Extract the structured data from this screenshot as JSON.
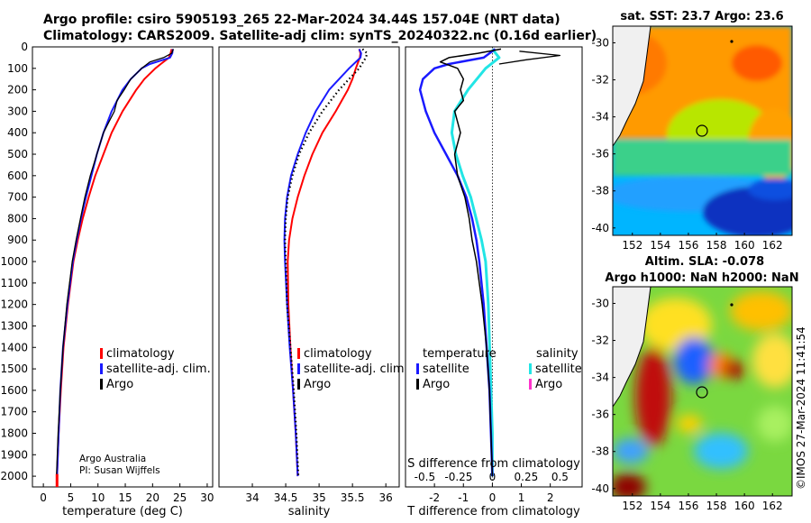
{
  "header": {
    "line1": "Argo profile: csiro 5905193_265 22-Mar-2024 34.44S 157.04E (NRT data)",
    "line2": "Climatology: CARS2009. Satellite-adj clim: synTS_20240322.nc (0.16d earlier)"
  },
  "colors": {
    "climatology": "#ff0000",
    "satellite": "#1a1aff",
    "argo": "#000000",
    "sat_sal": "#22e5e5",
    "argo_sal": "#ff33cc"
  },
  "chart_data": [
    {
      "type": "line",
      "xlabel": "temperature (deg C)",
      "ylabel": "",
      "xlim": [
        -2,
        31
      ],
      "ylim": [
        2050,
        0
      ],
      "xticks": [
        "0",
        "5",
        "10",
        "15",
        "20",
        "25",
        "30"
      ],
      "yticks": [
        "0",
        "100",
        "200",
        "300",
        "400",
        "500",
        "600",
        "700",
        "800",
        "900",
        "1000",
        "1100",
        "1200",
        "1300",
        "1400",
        "1500",
        "1600",
        "1700",
        "1800",
        "1900",
        "2000"
      ],
      "legend": [
        "climatology",
        "satellite-adj. clim.",
        "Argo"
      ],
      "annotation": [
        "Argo Australia",
        "PI: Susan Wijffels"
      ],
      "series": [
        {
          "name": "climatology",
          "depth": [
            10,
            30,
            50,
            80,
            100,
            150,
            200,
            300,
            400,
            500,
            600,
            700,
            800,
            900,
            1000,
            1200,
            1400,
            1600,
            1800,
            2000
          ],
          "values": [
            23.5,
            23.3,
            23,
            21.5,
            20.5,
            18.5,
            17,
            14.5,
            12.5,
            11,
            9.5,
            8.3,
            7.2,
            6.3,
            5.5,
            4.5,
            3.7,
            3.2,
            2.8,
            2.5
          ]
        },
        {
          "name": "satellite-adj. clim.",
          "depth": [
            10,
            30,
            50,
            80,
            100,
            150,
            200,
            300,
            400,
            500,
            600,
            700,
            800,
            900,
            1000,
            1200,
            1400,
            1600,
            1800,
            2000
          ],
          "values": [
            23.7,
            23.6,
            23.2,
            19.5,
            18,
            16,
            14.5,
            12.5,
            11,
            9.8,
            8.8,
            7.8,
            6.9,
            6.1,
            5.4,
            4.4,
            3.6,
            3.1,
            2.8,
            2.5
          ]
        },
        {
          "name": "Argo",
          "depth": [
            10,
            30,
            50,
            70,
            100,
            150,
            200,
            250,
            300,
            350,
            400,
            500,
            600,
            700,
            800,
            900,
            1000,
            1200,
            1400,
            1600,
            1800,
            2000
          ],
          "values": [
            23.8,
            23.5,
            22,
            19.5,
            18,
            16,
            14.8,
            13.5,
            13,
            12,
            11,
            9.8,
            8.6,
            7.6,
            6.8,
            6,
            5.3,
            4.3,
            3.6,
            3.1,
            2.7,
            2.4
          ]
        }
      ]
    },
    {
      "type": "line",
      "xlabel": "salinity",
      "xlim": [
        33.5,
        36.2
      ],
      "ylim": [
        2050,
        0
      ],
      "xticks": [
        "34",
        "34.5",
        "35",
        "35.5",
        "36"
      ],
      "legend": [
        "climatology",
        "satellite-adj. clim.",
        "Argo"
      ],
      "series": [
        {
          "name": "climatology",
          "depth": [
            10,
            30,
            50,
            100,
            150,
            200,
            300,
            400,
            500,
            600,
            700,
            800,
            900,
            1000,
            1200,
            1400,
            1600,
            1800,
            2000
          ],
          "values": [
            35.6,
            35.62,
            35.61,
            35.55,
            35.5,
            35.43,
            35.25,
            35.05,
            34.9,
            34.78,
            34.68,
            34.6,
            34.55,
            34.53,
            34.54,
            34.57,
            34.61,
            34.65,
            34.68
          ]
        },
        {
          "name": "satellite-adj. clim.",
          "depth": [
            10,
            30,
            50,
            100,
            150,
            200,
            300,
            400,
            500,
            600,
            700,
            800,
            900,
            1000,
            1200,
            1400,
            1600,
            1800,
            2000
          ],
          "values": [
            35.6,
            35.63,
            35.62,
            35.45,
            35.3,
            35.15,
            34.95,
            34.8,
            34.68,
            34.58,
            34.52,
            34.49,
            34.48,
            34.49,
            34.52,
            34.56,
            34.61,
            34.65,
            34.68
          ]
        },
        {
          "name": "Argo",
          "depth": [
            10,
            30,
            50,
            100,
            150,
            200,
            300,
            400,
            500,
            600,
            700,
            800,
            900,
            1000,
            1200,
            1400,
            1600,
            1800,
            2000
          ],
          "values": [
            35.65,
            35.72,
            35.7,
            35.6,
            35.45,
            35.3,
            35.05,
            34.85,
            34.7,
            34.6,
            34.53,
            34.5,
            34.49,
            34.5,
            34.52,
            34.57,
            34.62,
            34.66,
            34.69
          ]
        }
      ]
    },
    {
      "type": "line",
      "xlabel": "T difference from climatology",
      "xlabel_top": "S difference from climatology",
      "xlim": [
        -3,
        3.1
      ],
      "ylim": [
        2050,
        0
      ],
      "xticks": [
        "-2",
        "-1",
        "0",
        "1",
        "2"
      ],
      "sticks": [
        "-0.5",
        "-0.25",
        "0",
        "0.25",
        "0.5"
      ],
      "legend_headers": [
        "temperature",
        "salinity"
      ],
      "legend": [
        "satellite",
        "Argo",
        "satellite",
        "Argo"
      ],
      "series": [
        {
          "name": "T satellite",
          "depth": [
            10,
            50,
            80,
            100,
            150,
            200,
            300,
            400,
            500,
            600,
            700,
            800,
            900,
            1000,
            1200,
            1400,
            1600,
            1800,
            2000
          ],
          "values": [
            0.1,
            -0.3,
            -1.5,
            -2,
            -2.4,
            -2.5,
            -2.3,
            -2,
            -1.6,
            -1.2,
            -0.9,
            -0.7,
            -0.55,
            -0.45,
            -0.3,
            -0.2,
            -0.1,
            -0.05,
            0
          ]
        },
        {
          "name": "T Argo",
          "depth": [
            10,
            30,
            50,
            70,
            100,
            150,
            200,
            250,
            300,
            350,
            400,
            500,
            600,
            700,
            800,
            900,
            1000,
            1200,
            1400,
            1600,
            1800,
            2000
          ],
          "values": [
            0.3,
            -0.5,
            -1.5,
            -1.8,
            -1.2,
            -1,
            -1.1,
            -1,
            -1.3,
            -1.2,
            -1.1,
            -1.3,
            -1.2,
            -0.95,
            -0.8,
            -0.7,
            -0.55,
            -0.35,
            -0.2,
            -0.1,
            -0.05,
            0
          ]
        },
        {
          "name": "S satellite",
          "depth": [
            10,
            50,
            100,
            200,
            300,
            400,
            500,
            600,
            700,
            800,
            900,
            1000,
            1200,
            1400,
            1600,
            1800,
            2000
          ],
          "values": [
            0,
            0.05,
            -0.05,
            -0.18,
            -0.28,
            -0.3,
            -0.27,
            -0.22,
            -0.16,
            -0.12,
            -0.08,
            -0.05,
            -0.03,
            -0.02,
            -0.01,
            0,
            0
          ]
        },
        {
          "name": "S Argo (spikes)",
          "depth": [
            20,
            40,
            60,
            80
          ],
          "values": [
            0.2,
            0.5,
            0.25,
            0.05
          ]
        }
      ]
    },
    {
      "type": "heatmap",
      "title": "sat. SST: 23.7 Argo: 23.6",
      "xticks": [
        "152",
        "154",
        "156",
        "158",
        "160",
        "162"
      ],
      "yticks": [
        "-30",
        "-32",
        "-34",
        "-36",
        "-38",
        "-40"
      ],
      "float_position": {
        "lon": 157.04,
        "lat": -34.44
      }
    },
    {
      "type": "heatmap",
      "title_line1": "Altim. SLA: -0.078",
      "title_line2": "Argo h1000: NaN h2000: NaN",
      "xticks": [
        "152",
        "154",
        "156",
        "158",
        "160",
        "162"
      ],
      "yticks": [
        "-30",
        "-32",
        "-34",
        "-36",
        "-38",
        "-40"
      ],
      "float_position": {
        "lon": 157.04,
        "lat": -34.44
      }
    }
  ],
  "footer": {
    "stamp": "©IMOS 27-Mar-2024 11:41:54"
  }
}
